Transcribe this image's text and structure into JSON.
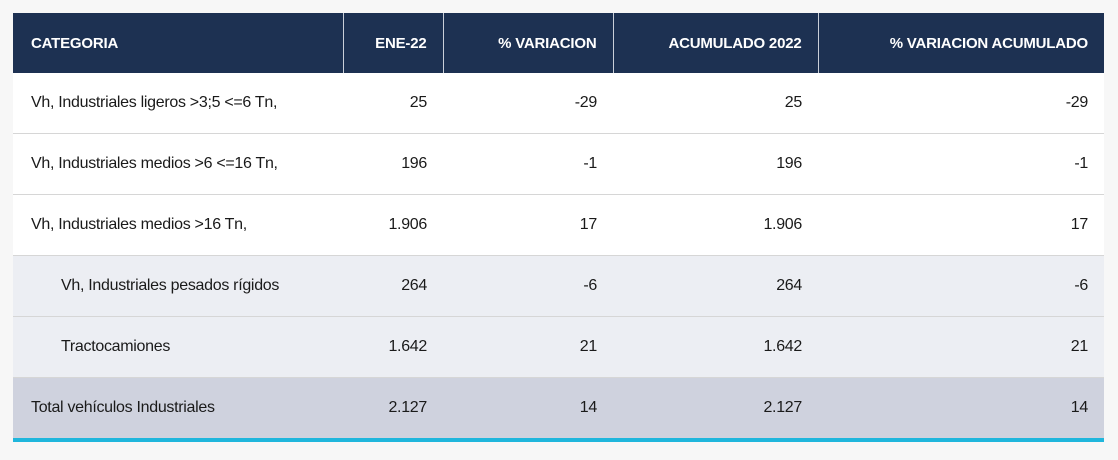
{
  "columns": [
    "CATEGORIA",
    "ENE-22",
    "% VARIACION",
    "ACUMULADO 2022",
    "% VARIACION ACUMULADO"
  ],
  "rows": [
    {
      "cells": [
        "Vh, Industriales ligeros >3;5 <=6 Tn,",
        "25",
        "-29",
        "25",
        "-29"
      ]
    },
    {
      "cells": [
        "Vh, Industriales medios >6 <=16 Tn,",
        "196",
        "-1",
        "196",
        "-1"
      ]
    },
    {
      "cells": [
        "Vh, Industriales medios >16 Tn,",
        "1.906",
        "17",
        "1.906",
        "17"
      ]
    },
    {
      "cells": [
        "Vh, Industriales pesados rígidos",
        "264",
        "-6",
        "264",
        "-6"
      ]
    },
    {
      "cells": [
        "Tractocamiones",
        "1.642",
        "21",
        "1.642",
        "21"
      ]
    },
    {
      "cells": [
        "Total vehículos Industriales",
        "2.127",
        "14",
        "2.127",
        "14"
      ]
    }
  ],
  "colors": {
    "header_bg": "#1d3152",
    "sub_row_bg": "#eceef3",
    "total_row_bg": "#cfd2de",
    "accent_bar": "#1fb6dc"
  }
}
